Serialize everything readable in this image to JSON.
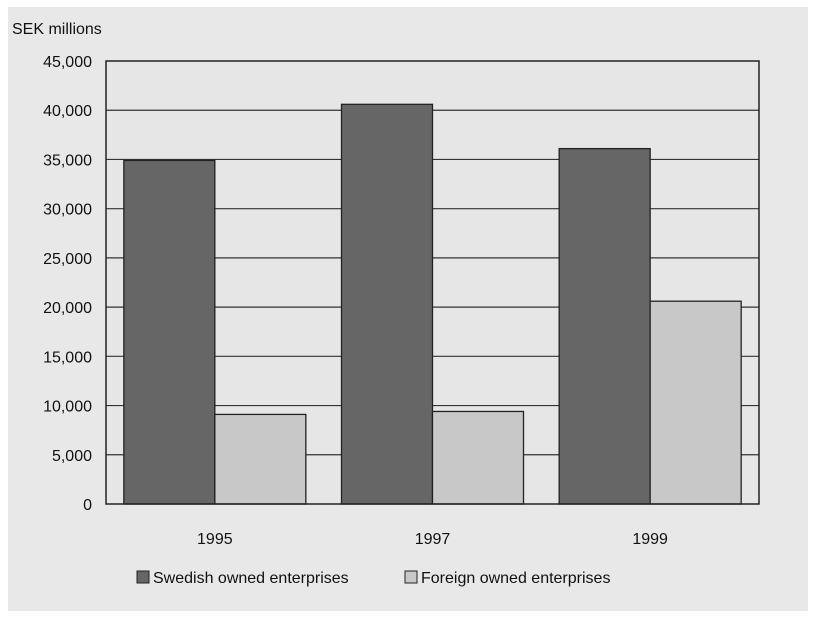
{
  "chart_data": {
    "type": "bar",
    "title": "",
    "ylabel": "SEK millions",
    "xlabel": "",
    "categories": [
      "1995",
      "1997",
      "1999"
    ],
    "series": [
      {
        "name": "Swedish owned enterprises",
        "values": [
          34900,
          40600,
          36100
        ],
        "color": "#666666"
      },
      {
        "name": "Foreign owned enterprises",
        "values": [
          9100,
          9400,
          20600
        ],
        "color": "#c8c8c8"
      }
    ],
    "ylim": [
      0,
      45000
    ],
    "yticks": [
      "0",
      "5,000",
      "10,000",
      "15,000",
      "20,000",
      "25,000",
      "30,000",
      "35,000",
      "40,000",
      "45,000"
    ],
    "grid": true,
    "legend": "bottom",
    "colors": {
      "panel_background": "#e8e8e8",
      "plot_background": "#e6e6e6",
      "border": "#222222"
    }
  }
}
